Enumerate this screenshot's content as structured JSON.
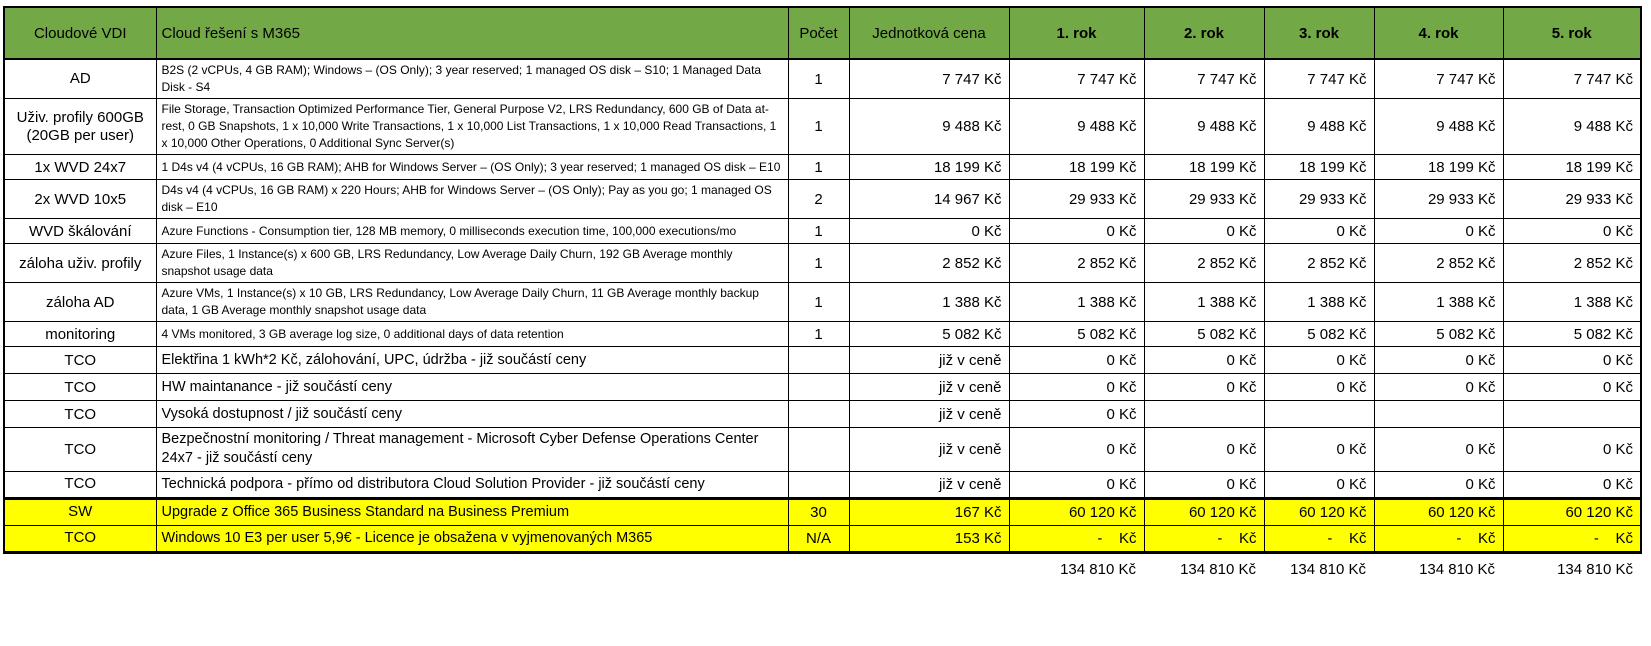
{
  "colors": {
    "header_green": "#73A846",
    "highlight_yellow": "#FFFF00"
  },
  "table": {
    "headers": [
      "Cloudové VDI",
      "Cloud řešení s M365",
      "Počet",
      "Jednotková cena",
      "1. rok",
      "2. rok",
      "3. rok",
      "4. rok",
      "5. rok"
    ],
    "rows": [
      {
        "name": "AD",
        "description": "B2S (2 vCPUs, 4 GB RAM); Windows – (OS Only); 3 year reserved; 1 managed OS disk – S10; 1 Managed Data Disk - S4",
        "count": "1",
        "unit_price": "7 747 Kč",
        "years": [
          "7 747 Kč",
          "7 747 Kč",
          "7 747 Kč",
          "7 747 Kč",
          "7 747 Kč"
        ],
        "small_desc": true,
        "highlight": false
      },
      {
        "name": "Uživ. profily 600GB (20GB per user)",
        "description": "File Storage, Transaction Optimized Performance Tier, General Purpose V2, LRS Redundancy, 600 GB of Data at-rest, 0 GB Snapshots, 1 x 10,000 Write Transactions, 1 x 10,000 List Transactions, 1 x 10,000 Read Transactions, 1 x 10,000 Other Operations, 0 Additional Sync Server(s)",
        "count": "1",
        "unit_price": "9 488 Kč",
        "years": [
          "9 488 Kč",
          "9 488 Kč",
          "9 488 Kč",
          "9 488 Kč",
          "9 488 Kč"
        ],
        "small_desc": true,
        "highlight": false
      },
      {
        "name": "1x WVD 24x7",
        "description": "1 D4s v4 (4 vCPUs, 16 GB RAM); AHB for Windows Server – (OS Only); 3 year reserved; 1 managed OS disk – E10",
        "count": "1",
        "unit_price": "18 199 Kč",
        "years": [
          "18 199 Kč",
          "18 199 Kč",
          "18 199 Kč",
          "18 199 Kč",
          "18 199 Kč"
        ],
        "small_desc": true,
        "highlight": false
      },
      {
        "name": "2x WVD 10x5",
        "description": "D4s v4 (4 vCPUs, 16 GB RAM) x 220 Hours; AHB for Windows Server – (OS Only); Pay as you go; 1 managed OS disk – E10",
        "count": "2",
        "unit_price": "14 967 Kč",
        "years": [
          "29 933 Kč",
          "29 933 Kč",
          "29 933 Kč",
          "29 933 Kč",
          "29 933 Kč"
        ],
        "small_desc": true,
        "highlight": false
      },
      {
        "name": "WVD škálování",
        "description": "Azure Functions - Consumption tier, 128 MB memory, 0 milliseconds execution time, 100,000 executions/mo",
        "count": "1",
        "unit_price": "0 Kč",
        "years": [
          "0 Kč",
          "0 Kč",
          "0 Kč",
          "0 Kč",
          "0 Kč"
        ],
        "small_desc": true,
        "highlight": false
      },
      {
        "name": "záloha uživ. profily",
        "description": "Azure Files, 1 Instance(s) x 600 GB, LRS Redundancy, Low Average Daily Churn, 192 GB Average monthly snapshot usage data",
        "count": "1",
        "unit_price": "2 852 Kč",
        "years": [
          "2 852 Kč",
          "2 852 Kč",
          "2 852 Kč",
          "2 852 Kč",
          "2 852 Kč"
        ],
        "small_desc": true,
        "highlight": false
      },
      {
        "name": "záloha AD",
        "description": "Azure VMs, 1 Instance(s) x 10 GB, LRS Redundancy, Low Average Daily Churn, 11 GB Average monthly backup data, 1 GB Average monthly snapshot usage data",
        "count": "1",
        "unit_price": "1 388 Kč",
        "years": [
          "1 388 Kč",
          "1 388 Kč",
          "1 388 Kč",
          "1 388 Kč",
          "1 388 Kč"
        ],
        "small_desc": true,
        "highlight": false
      },
      {
        "name": "monitoring",
        "description": "4 VMs monitored, 3 GB average log size, 0 additional days of data retention",
        "count": "1",
        "unit_price": "5 082 Kč",
        "years": [
          "5 082 Kč",
          "5 082 Kč",
          "5 082 Kč",
          "5 082 Kč",
          "5 082 Kč"
        ],
        "small_desc": true,
        "highlight": false
      },
      {
        "name": "TCO",
        "description": "Elektřina 1 kWh*2 Kč, zálohování, UPC, údržba - již součástí ceny",
        "count": "",
        "unit_price": "již v ceně",
        "years": [
          "0 Kč",
          "0 Kč",
          "0 Kč",
          "0 Kč",
          "0 Kč"
        ],
        "small_desc": false,
        "highlight": false
      },
      {
        "name": "TCO",
        "description": "HW maintanance - již součástí ceny",
        "count": "",
        "unit_price": "již v ceně",
        "years": [
          "0 Kč",
          "0 Kč",
          "0 Kč",
          "0 Kč",
          "0 Kč"
        ],
        "small_desc": false,
        "highlight": false
      },
      {
        "name": "TCO",
        "description": "Vysoká dostupnost / již součástí ceny",
        "count": "",
        "unit_price": "již v ceně",
        "years": [
          "0 Kč",
          "",
          "",
          "",
          ""
        ],
        "small_desc": false,
        "highlight": false
      },
      {
        "name": "TCO",
        "description": "Bezpečnostní monitoring / Threat management - Microsoft Cyber Defense Operations Center 24x7 - již součástí ceny",
        "count": "",
        "unit_price": "již v ceně",
        "years": [
          "0 Kč",
          "0 Kč",
          "0 Kč",
          "0 Kč",
          "0 Kč"
        ],
        "small_desc": false,
        "highlight": false
      },
      {
        "name": "TCO",
        "description": "Technická podpora - přímo od distributora Cloud Solution Provider - již součástí ceny",
        "count": "",
        "unit_price": "již v ceně",
        "years": [
          "0 Kč",
          "0 Kč",
          "0 Kč",
          "0 Kč",
          "0 Kč"
        ],
        "small_desc": false,
        "highlight": false
      },
      {
        "name": "SW",
        "description": "Upgrade z Office 365 Business Standard na Business Premium",
        "count": "30",
        "unit_price": "167 Kč",
        "years": [
          "60 120 Kč",
          "60 120 Kč",
          "60 120 Kč",
          "60 120 Kč",
          "60 120 Kč"
        ],
        "small_desc": false,
        "highlight": true
      },
      {
        "name": "TCO",
        "description": "Windows 10 E3 per user 5,9€ - Licence je obsažena v vyjmenovaných M365",
        "count": "N/A",
        "unit_price": "153 Kč",
        "years": [
          "-    Kč",
          "-    Kč",
          "-    Kč",
          "-    Kč",
          "-    Kč"
        ],
        "small_desc": false,
        "highlight": true
      }
    ],
    "totals": [
      "134 810 Kč",
      "134 810 Kč",
      "134 810 Kč",
      "134 810 Kč",
      "134 810 Kč"
    ]
  }
}
